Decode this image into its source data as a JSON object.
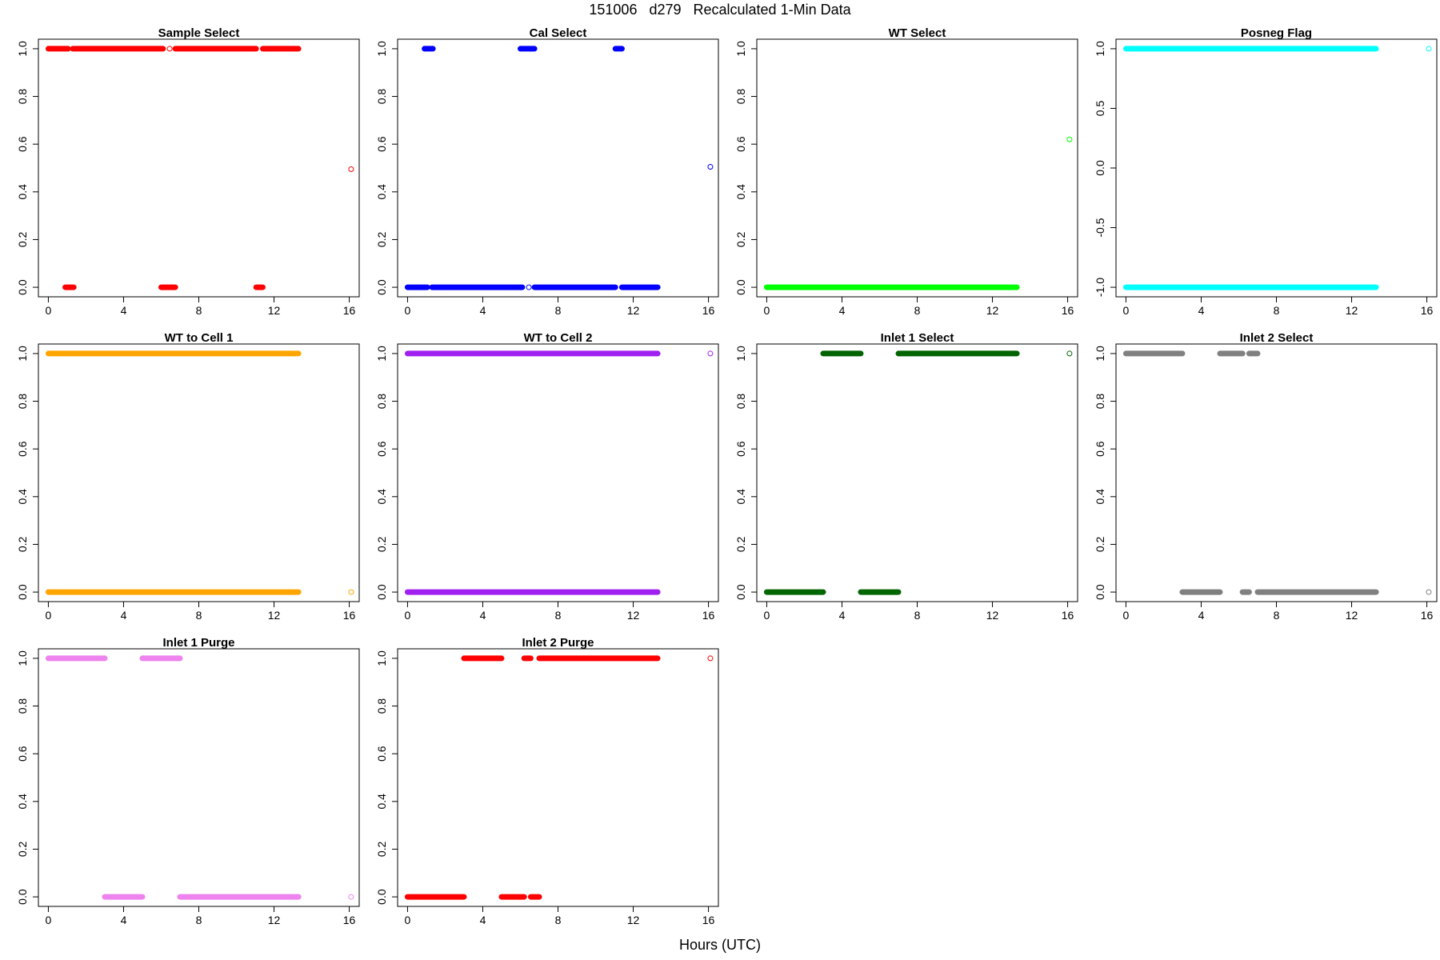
{
  "page": {
    "title": "151006   d279   Recalculated 1-Min Data",
    "xlabel": "Hours (UTC)"
  },
  "chart_data": [
    {
      "type": "scatter",
      "title": "Sample Select",
      "color": "#ff0000",
      "xlim": [
        0,
        16
      ],
      "ylim": [
        0,
        1
      ],
      "xticks": [
        0,
        4,
        8,
        12,
        16
      ],
      "yticks": [
        0.0,
        0.2,
        0.4,
        0.6,
        0.8,
        1.0
      ],
      "segments": [
        {
          "y": 1,
          "x": [
            0,
            1.05
          ]
        },
        {
          "y": 1,
          "x": [
            1.3,
            6.1
          ]
        },
        {
          "y": 1,
          "x": [
            6.75,
            11.05
          ]
        },
        {
          "y": 1,
          "x": [
            11.4,
            13.3
          ]
        },
        {
          "y": 0,
          "x": [
            0.9,
            1.35
          ]
        },
        {
          "y": 0,
          "x": [
            6.0,
            6.5
          ]
        },
        {
          "y": 0,
          "x": [
            6.55,
            6.75
          ]
        },
        {
          "y": 0,
          "x": [
            11.05,
            11.4
          ]
        }
      ],
      "open_points": [
        {
          "x": 6.45,
          "y": 1
        },
        {
          "x": 6.55,
          "y": 0
        },
        {
          "x": 16.1,
          "y": 0.495
        }
      ]
    },
    {
      "type": "scatter",
      "title": "Cal Select",
      "color": "#0000ff",
      "xlim": [
        0,
        16
      ],
      "ylim": [
        0,
        1
      ],
      "xticks": [
        0,
        4,
        8,
        12,
        16
      ],
      "yticks": [
        0.0,
        0.2,
        0.4,
        0.6,
        0.8,
        1.0
      ],
      "segments": [
        {
          "y": 1,
          "x": [
            0.9,
            1.35
          ]
        },
        {
          "y": 1,
          "x": [
            6.0,
            6.5
          ]
        },
        {
          "y": 1,
          "x": [
            6.55,
            6.75
          ]
        },
        {
          "y": 1,
          "x": [
            11.05,
            11.4
          ]
        },
        {
          "y": 0,
          "x": [
            0,
            1.05
          ]
        },
        {
          "y": 0,
          "x": [
            1.3,
            6.1
          ]
        },
        {
          "y": 0,
          "x": [
            6.75,
            11.05
          ]
        },
        {
          "y": 0,
          "x": [
            11.4,
            13.3
          ]
        }
      ],
      "open_points": [
        {
          "x": 6.55,
          "y": 1
        },
        {
          "x": 6.45,
          "y": 0
        },
        {
          "x": 16.1,
          "y": 0.505
        }
      ]
    },
    {
      "type": "scatter",
      "title": "WT Select",
      "color": "#00ff00",
      "xlim": [
        0,
        16
      ],
      "ylim": [
        0,
        1
      ],
      "xticks": [
        0,
        4,
        8,
        12,
        16
      ],
      "yticks": [
        0.0,
        0.2,
        0.4,
        0.6,
        0.8,
        1.0
      ],
      "segments": [
        {
          "y": 0,
          "x": [
            0,
            13.3
          ]
        }
      ],
      "open_points": [
        {
          "x": 16.1,
          "y": 0.62
        }
      ]
    },
    {
      "type": "scatter",
      "title": "Posneg Flag",
      "color": "#00ffff",
      "xlim": [
        0,
        16
      ],
      "ylim": [
        -1,
        1
      ],
      "xticks": [
        0,
        4,
        8,
        12,
        16
      ],
      "yticks": [
        -1.0,
        -0.5,
        0.0,
        0.5,
        1.0
      ],
      "segments": [
        {
          "y": 1,
          "x": [
            0,
            13.3
          ]
        },
        {
          "y": -1,
          "x": [
            0,
            13.3
          ]
        }
      ],
      "open_points": [
        {
          "x": 16.1,
          "y": 1
        }
      ]
    },
    {
      "type": "scatter",
      "title": "WT to Cell 1",
      "color": "#ffa500",
      "xlim": [
        0,
        16
      ],
      "ylim": [
        0,
        1
      ],
      "xticks": [
        0,
        4,
        8,
        12,
        16
      ],
      "yticks": [
        0.0,
        0.2,
        0.4,
        0.6,
        0.8,
        1.0
      ],
      "segments": [
        {
          "y": 1,
          "x": [
            0,
            13.3
          ]
        },
        {
          "y": 0,
          "x": [
            0,
            13.3
          ]
        }
      ],
      "open_points": [
        {
          "x": 16.1,
          "y": 0
        }
      ]
    },
    {
      "type": "scatter",
      "title": "WT to Cell 2",
      "color": "#a020f0",
      "xlim": [
        0,
        16
      ],
      "ylim": [
        0,
        1
      ],
      "xticks": [
        0,
        4,
        8,
        12,
        16
      ],
      "yticks": [
        0.0,
        0.2,
        0.4,
        0.6,
        0.8,
        1.0
      ],
      "segments": [
        {
          "y": 1,
          "x": [
            0,
            13.3
          ]
        },
        {
          "y": 0,
          "x": [
            0,
            13.3
          ]
        }
      ],
      "open_points": [
        {
          "x": 16.1,
          "y": 1
        }
      ]
    },
    {
      "type": "scatter",
      "title": "Inlet 1 Select",
      "color": "#006400",
      "xlim": [
        0,
        16
      ],
      "ylim": [
        0,
        1
      ],
      "xticks": [
        0,
        4,
        8,
        12,
        16
      ],
      "yticks": [
        0.0,
        0.2,
        0.4,
        0.6,
        0.8,
        1.0
      ],
      "segments": [
        {
          "y": 1,
          "x": [
            3.0,
            5.0
          ]
        },
        {
          "y": 1,
          "x": [
            7.0,
            13.3
          ]
        },
        {
          "y": 0,
          "x": [
            0,
            3.0
          ]
        },
        {
          "y": 0,
          "x": [
            5.0,
            7.0
          ]
        }
      ],
      "open_points": [
        {
          "x": 16.1,
          "y": 1
        }
      ]
    },
    {
      "type": "scatter",
      "title": "Inlet 2 Select",
      "color": "#808080",
      "xlim": [
        0,
        16
      ],
      "ylim": [
        0,
        1
      ],
      "xticks": [
        0,
        4,
        8,
        12,
        16
      ],
      "yticks": [
        0.0,
        0.2,
        0.4,
        0.6,
        0.8,
        1.0
      ],
      "segments": [
        {
          "y": 1,
          "x": [
            0,
            3.0
          ]
        },
        {
          "y": 1,
          "x": [
            5.0,
            6.2
          ]
        },
        {
          "y": 1,
          "x": [
            6.55,
            7.0
          ]
        },
        {
          "y": 0,
          "x": [
            3.0,
            5.0
          ]
        },
        {
          "y": 0,
          "x": [
            6.2,
            6.55
          ]
        },
        {
          "y": 0,
          "x": [
            7.0,
            13.3
          ]
        }
      ],
      "open_points": [
        {
          "x": 16.1,
          "y": 0
        }
      ]
    },
    {
      "type": "scatter",
      "title": "Inlet 1 Purge",
      "color": "#ee82ee",
      "xlim": [
        0,
        16
      ],
      "ylim": [
        0,
        1
      ],
      "xticks": [
        0,
        4,
        8,
        12,
        16
      ],
      "yticks": [
        0.0,
        0.2,
        0.4,
        0.6,
        0.8,
        1.0
      ],
      "segments": [
        {
          "y": 1,
          "x": [
            0,
            3.0
          ]
        },
        {
          "y": 1,
          "x": [
            5.0,
            7.0
          ]
        },
        {
          "y": 0,
          "x": [
            3.0,
            5.0
          ]
        },
        {
          "y": 0,
          "x": [
            7.0,
            13.3
          ]
        }
      ],
      "open_points": [
        {
          "x": 16.1,
          "y": 0
        }
      ]
    },
    {
      "type": "scatter",
      "title": "Inlet 2 Purge",
      "color": "#ff0000",
      "xlim": [
        0,
        16
      ],
      "ylim": [
        0,
        1
      ],
      "xticks": [
        0,
        4,
        8,
        12,
        16
      ],
      "yticks": [
        0.0,
        0.2,
        0.4,
        0.6,
        0.8,
        1.0
      ],
      "segments": [
        {
          "y": 1,
          "x": [
            3.0,
            5.0
          ]
        },
        {
          "y": 1,
          "x": [
            6.2,
            6.55
          ]
        },
        {
          "y": 1,
          "x": [
            7.0,
            13.3
          ]
        },
        {
          "y": 0,
          "x": [
            0,
            3.0
          ]
        },
        {
          "y": 0,
          "x": [
            5.0,
            6.2
          ]
        },
        {
          "y": 0,
          "x": [
            6.55,
            7.0
          ]
        }
      ],
      "open_points": [
        {
          "x": 16.1,
          "y": 1
        }
      ]
    }
  ]
}
